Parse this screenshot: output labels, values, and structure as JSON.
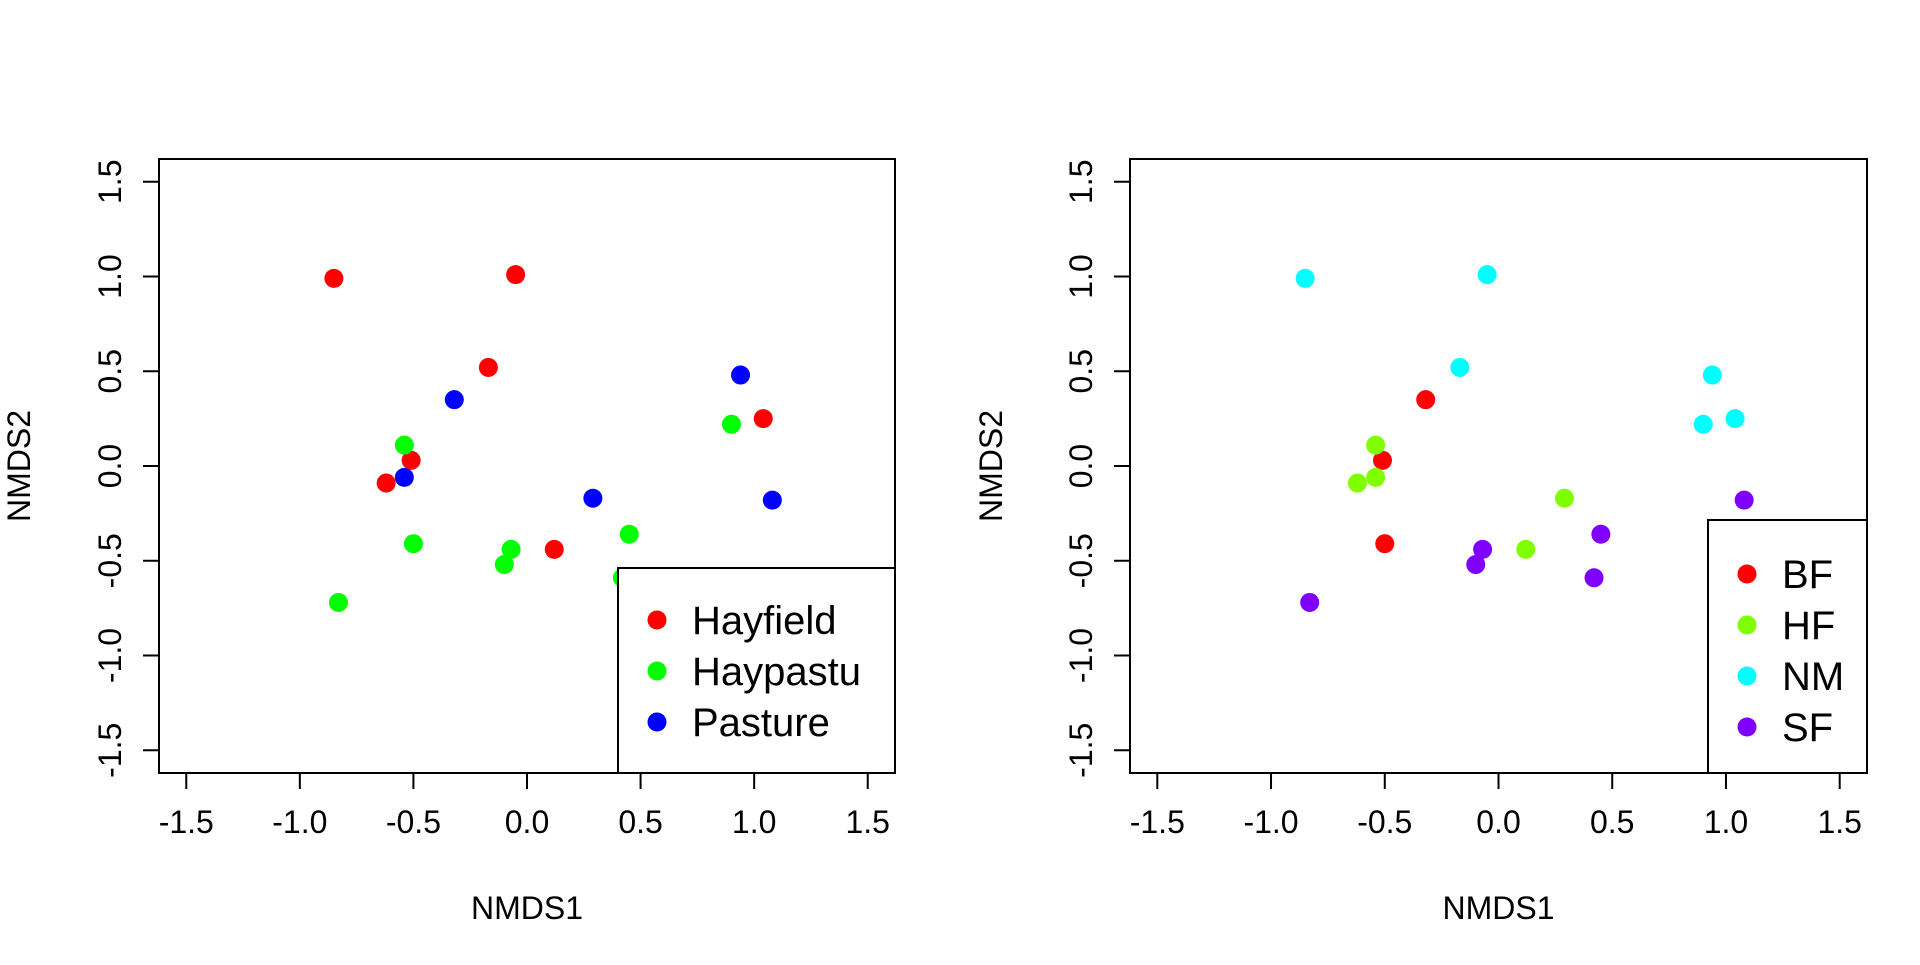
{
  "chart_data": [
    {
      "type": "scatter",
      "xlabel": "NMDS1",
      "ylabel": "NMDS2",
      "xlim": [
        -1.62,
        1.62
      ],
      "ylim": [
        -1.62,
        1.62
      ],
      "xticks": [
        "-1.5",
        "-1.0",
        "-0.5",
        "0.0",
        "0.5",
        "1.0",
        "1.5"
      ],
      "yticks": [
        "-1.5",
        "-1.0",
        "-0.5",
        "0.0",
        "0.5",
        "1.0",
        "1.5"
      ],
      "grid": false,
      "legend_position": "bottom-right",
      "series": [
        {
          "name": "Hayfield",
          "color": "#ff0000",
          "points": [
            [
              -0.85,
              0.99
            ],
            [
              -0.05,
              1.01
            ],
            [
              -0.17,
              0.52
            ],
            [
              -0.51,
              0.03
            ],
            [
              -0.62,
              -0.09
            ],
            [
              1.04,
              0.25
            ],
            [
              0.12,
              -0.44
            ]
          ]
        },
        {
          "name": "Haypastu",
          "color": "#00ff00",
          "points": [
            [
              -0.54,
              0.11
            ],
            [
              -0.5,
              -0.41
            ],
            [
              -0.07,
              -0.44
            ],
            [
              -0.1,
              -0.52
            ],
            [
              0.45,
              -0.36
            ],
            [
              0.9,
              0.22
            ],
            [
              0.42,
              -0.59
            ],
            [
              -0.83,
              -0.72
            ]
          ]
        },
        {
          "name": "Pasture",
          "color": "#0000ff",
          "points": [
            [
              -0.32,
              0.35
            ],
            [
              -0.54,
              -0.06
            ],
            [
              0.29,
              -0.17
            ],
            [
              0.94,
              0.48
            ],
            [
              1.08,
              -0.18
            ]
          ]
        }
      ]
    },
    {
      "type": "scatter",
      "xlabel": "NMDS1",
      "ylabel": "NMDS2",
      "xlim": [
        -1.62,
        1.62
      ],
      "ylim": [
        -1.62,
        1.62
      ],
      "xticks": [
        "-1.5",
        "-1.0",
        "-0.5",
        "0.0",
        "0.5",
        "1.0",
        "1.5"
      ],
      "yticks": [
        "-1.5",
        "-1.0",
        "-0.5",
        "0.0",
        "0.5",
        "1.0",
        "1.5"
      ],
      "grid": false,
      "legend_position": "bottom-right",
      "series": [
        {
          "name": "BF",
          "color": "#ff0000",
          "points": [
            [
              -0.32,
              0.35
            ],
            [
              -0.51,
              0.03
            ],
            [
              -0.5,
              -0.41
            ]
          ]
        },
        {
          "name": "HF",
          "color": "#80ff00",
          "points": [
            [
              -0.54,
              0.11
            ],
            [
              -0.54,
              -0.06
            ],
            [
              -0.62,
              -0.09
            ],
            [
              0.29,
              -0.17
            ],
            [
              0.12,
              -0.44
            ]
          ]
        },
        {
          "name": "NM",
          "color": "#00ffff",
          "points": [
            [
              -0.85,
              0.99
            ],
            [
              -0.05,
              1.01
            ],
            [
              -0.17,
              0.52
            ],
            [
              0.94,
              0.48
            ],
            [
              1.04,
              0.25
            ],
            [
              0.9,
              0.22
            ]
          ]
        },
        {
          "name": "SF",
          "color": "#8000ff",
          "points": [
            [
              -0.07,
              -0.44
            ],
            [
              -0.1,
              -0.52
            ],
            [
              0.45,
              -0.36
            ],
            [
              0.42,
              -0.59
            ],
            [
              -0.83,
              -0.72
            ],
            [
              1.08,
              -0.18
            ]
          ]
        }
      ]
    }
  ]
}
